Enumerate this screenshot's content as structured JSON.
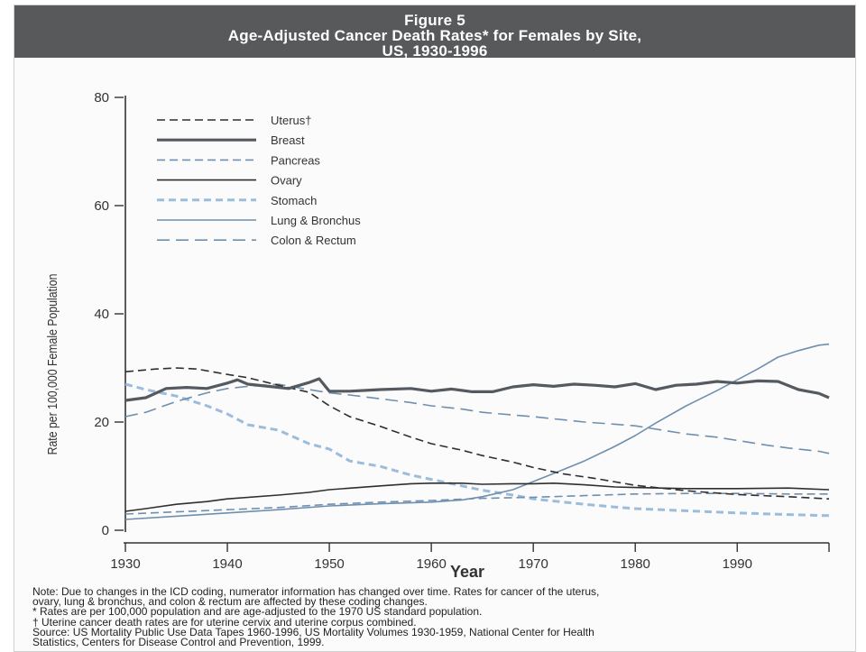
{
  "figure": {
    "label": "Figure 5",
    "title_line1": "Age-Adjusted Cancer Death Rates* for Females by Site,",
    "title_line2": "US, 1930-1996"
  },
  "notes": [
    "Note: Due to changes in the ICD coding, numerator information has changed over time. Rates for cancer of the uterus,",
    "ovary, lung & bronchus, and colon & rectum are affected by these coding changes.",
    "* Rates are per 100,000 population and are age-adjusted to the 1970 US standard population.",
    "† Uterine cancer death rates are for uterine cervix and uterine corpus combined.",
    "Source: US Mortality Public Use Data Tapes 1960-1996, US Mortality Volumes 1930-1959, National Center for Health",
    "Statistics, Centers for Disease Control and Prevention, 1999."
  ],
  "colors": {
    "header_bg": "#58595b",
    "dark_series": "#2f2f2f",
    "breast": "#555a60",
    "blue_series": "#6f8fae",
    "light_blue_series": "#9cbcdc"
  },
  "chart_data": {
    "type": "line",
    "title": "",
    "xlabel": "Year",
    "ylabel": "Rate per 100,000 Female Population",
    "xlim": [
      1930,
      1999
    ],
    "ylim": [
      0,
      80
    ],
    "xticks": [
      1930,
      1940,
      1950,
      1960,
      1970,
      1980,
      1990
    ],
    "yticks": [
      0,
      20,
      40,
      60,
      80
    ],
    "grid": false,
    "legend_position": "top-left",
    "series": [
      {
        "name": "Uterus†",
        "style": "dashed",
        "color": "#2f2f2f",
        "points": [
          [
            1930,
            29.3
          ],
          [
            1933,
            29.8
          ],
          [
            1935,
            30.0
          ],
          [
            1937,
            29.8
          ],
          [
            1940,
            28.8
          ],
          [
            1942,
            28.2
          ],
          [
            1945,
            26.8
          ],
          [
            1948,
            25.5
          ],
          [
            1950,
            23.0
          ],
          [
            1952,
            21.0
          ],
          [
            1955,
            19.2
          ],
          [
            1958,
            17.2
          ],
          [
            1960,
            16.0
          ],
          [
            1963,
            14.8
          ],
          [
            1965,
            13.8
          ],
          [
            1968,
            12.6
          ],
          [
            1970,
            11.6
          ],
          [
            1973,
            10.4
          ],
          [
            1976,
            9.6
          ],
          [
            1980,
            8.3
          ],
          [
            1985,
            7.3
          ],
          [
            1990,
            6.6
          ],
          [
            1995,
            6.2
          ],
          [
            1999,
            5.8
          ]
        ]
      },
      {
        "name": "Breast",
        "style": "solid-thick",
        "color": "#555a60",
        "points": [
          [
            1930,
            24.0
          ],
          [
            1932,
            24.5
          ],
          [
            1934,
            26.2
          ],
          [
            1936,
            26.4
          ],
          [
            1938,
            26.2
          ],
          [
            1940,
            27.2
          ],
          [
            1941,
            27.8
          ],
          [
            1942,
            27.0
          ],
          [
            1944,
            26.6
          ],
          [
            1946,
            26.2
          ],
          [
            1948,
            27.3
          ],
          [
            1949,
            28.0
          ],
          [
            1950,
            25.7
          ],
          [
            1952,
            25.7
          ],
          [
            1955,
            26.0
          ],
          [
            1958,
            26.2
          ],
          [
            1960,
            25.7
          ],
          [
            1962,
            26.1
          ],
          [
            1964,
            25.6
          ],
          [
            1966,
            25.6
          ],
          [
            1968,
            26.5
          ],
          [
            1970,
            26.9
          ],
          [
            1972,
            26.6
          ],
          [
            1974,
            27.0
          ],
          [
            1976,
            26.8
          ],
          [
            1978,
            26.5
          ],
          [
            1980,
            27.1
          ],
          [
            1982,
            26.0
          ],
          [
            1984,
            26.8
          ],
          [
            1986,
            27.0
          ],
          [
            1988,
            27.5
          ],
          [
            1990,
            27.2
          ],
          [
            1992,
            27.6
          ],
          [
            1994,
            27.5
          ],
          [
            1996,
            26.0
          ],
          [
            1998,
            25.3
          ],
          [
            1999,
            24.5
          ]
        ]
      },
      {
        "name": "Pancreas",
        "style": "dashed",
        "color": "#6f8fae",
        "points": [
          [
            1930,
            3.0
          ],
          [
            1935,
            3.4
          ],
          [
            1940,
            3.8
          ],
          [
            1945,
            4.2
          ],
          [
            1950,
            4.8
          ],
          [
            1955,
            5.2
          ],
          [
            1960,
            5.5
          ],
          [
            1965,
            5.9
          ],
          [
            1970,
            6.1
          ],
          [
            1975,
            6.4
          ],
          [
            1980,
            6.7
          ],
          [
            1985,
            6.8
          ],
          [
            1990,
            6.8
          ],
          [
            1995,
            6.7
          ],
          [
            1999,
            6.7
          ]
        ]
      },
      {
        "name": "Ovary",
        "style": "solid",
        "color": "#2f2f2f",
        "points": [
          [
            1930,
            3.5
          ],
          [
            1932,
            4.0
          ],
          [
            1935,
            4.8
          ],
          [
            1938,
            5.3
          ],
          [
            1940,
            5.8
          ],
          [
            1945,
            6.5
          ],
          [
            1948,
            7.0
          ],
          [
            1950,
            7.5
          ],
          [
            1955,
            8.2
          ],
          [
            1958,
            8.6
          ],
          [
            1960,
            8.7
          ],
          [
            1963,
            8.7
          ],
          [
            1965,
            8.5
          ],
          [
            1968,
            8.6
          ],
          [
            1970,
            8.6
          ],
          [
            1972,
            8.7
          ],
          [
            1975,
            8.4
          ],
          [
            1978,
            8.0
          ],
          [
            1980,
            7.9
          ],
          [
            1985,
            7.7
          ],
          [
            1990,
            7.7
          ],
          [
            1995,
            7.8
          ],
          [
            1999,
            7.5
          ]
        ]
      },
      {
        "name": "Stomach",
        "style": "dashed-thick",
        "color": "#9cbcdc",
        "points": [
          [
            1930,
            27.0
          ],
          [
            1932,
            26.0
          ],
          [
            1935,
            24.8
          ],
          [
            1938,
            23.0
          ],
          [
            1940,
            21.5
          ],
          [
            1942,
            19.5
          ],
          [
            1945,
            18.5
          ],
          [
            1948,
            16.0
          ],
          [
            1950,
            15.0
          ],
          [
            1952,
            12.8
          ],
          [
            1955,
            11.8
          ],
          [
            1958,
            10.2
          ],
          [
            1960,
            9.4
          ],
          [
            1962,
            8.6
          ],
          [
            1965,
            7.4
          ],
          [
            1968,
            6.5
          ],
          [
            1970,
            5.8
          ],
          [
            1972,
            5.4
          ],
          [
            1975,
            4.8
          ],
          [
            1978,
            4.3
          ],
          [
            1980,
            4.0
          ],
          [
            1985,
            3.6
          ],
          [
            1990,
            3.2
          ],
          [
            1995,
            2.9
          ],
          [
            1999,
            2.7
          ]
        ]
      },
      {
        "name": "Lung & Bronchus",
        "style": "solid",
        "color": "#6f8fae",
        "points": [
          [
            1930,
            2.0
          ],
          [
            1935,
            2.6
          ],
          [
            1940,
            3.2
          ],
          [
            1945,
            3.8
          ],
          [
            1950,
            4.5
          ],
          [
            1955,
            4.9
          ],
          [
            1960,
            5.2
          ],
          [
            1963,
            5.6
          ],
          [
            1965,
            6.2
          ],
          [
            1968,
            7.5
          ],
          [
            1970,
            9.0
          ],
          [
            1972,
            10.5
          ],
          [
            1975,
            12.8
          ],
          [
            1978,
            15.5
          ],
          [
            1980,
            17.5
          ],
          [
            1982,
            19.8
          ],
          [
            1985,
            23.0
          ],
          [
            1988,
            25.8
          ],
          [
            1990,
            27.8
          ],
          [
            1992,
            29.8
          ],
          [
            1994,
            32.0
          ],
          [
            1996,
            33.2
          ],
          [
            1998,
            34.2
          ],
          [
            1999,
            34.4
          ]
        ]
      },
      {
        "name": "Colon & Rectum",
        "style": "dashed-long",
        "color": "#6f8fae",
        "points": [
          [
            1930,
            21.0
          ],
          [
            1932,
            21.8
          ],
          [
            1935,
            23.8
          ],
          [
            1938,
            25.4
          ],
          [
            1940,
            26.2
          ],
          [
            1942,
            26.6
          ],
          [
            1945,
            27.0
          ],
          [
            1948,
            26.0
          ],
          [
            1950,
            25.4
          ],
          [
            1952,
            25.0
          ],
          [
            1955,
            24.3
          ],
          [
            1958,
            23.6
          ],
          [
            1960,
            23.0
          ],
          [
            1963,
            22.4
          ],
          [
            1965,
            21.8
          ],
          [
            1968,
            21.3
          ],
          [
            1970,
            21.0
          ],
          [
            1973,
            20.4
          ],
          [
            1975,
            20.0
          ],
          [
            1978,
            19.6
          ],
          [
            1980,
            19.3
          ],
          [
            1983,
            18.4
          ],
          [
            1985,
            17.8
          ],
          [
            1988,
            17.2
          ],
          [
            1990,
            16.6
          ],
          [
            1993,
            15.7
          ],
          [
            1995,
            15.2
          ],
          [
            1998,
            14.6
          ],
          [
            1999,
            14.2
          ]
        ]
      }
    ]
  }
}
